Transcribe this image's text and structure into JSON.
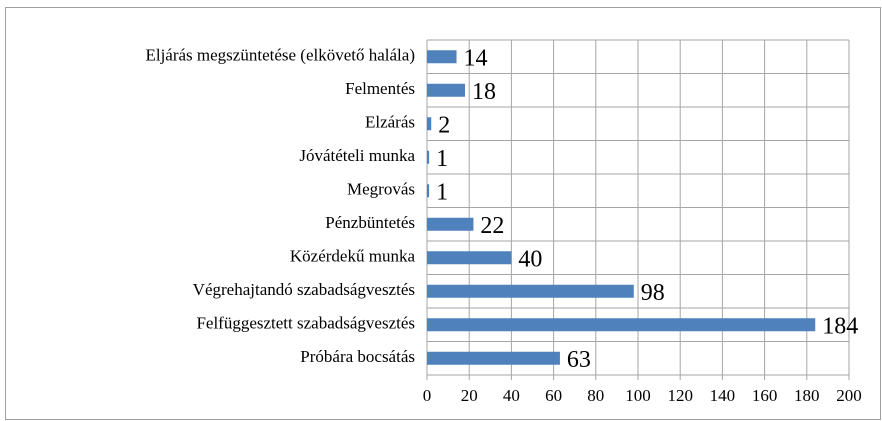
{
  "chart_data": {
    "type": "bar",
    "orientation": "horizontal",
    "categories": [
      "Eljárás megszüntetése (elkövető halála)",
      "Felmentés",
      "Elzárás",
      "Jóvátételi munka",
      "Megrovás",
      "Pénzbüntetés",
      "Közérdekű munka",
      "Végrehajtandó szabadságvesztés",
      "Felfüggesztett szabadságvesztés",
      "Próbára bocsátás"
    ],
    "values": [
      14,
      18,
      2,
      1,
      1,
      22,
      40,
      98,
      184,
      63
    ],
    "color": "#4f81bd",
    "xlim": [
      0,
      200
    ],
    "xticks": [
      0,
      20,
      40,
      60,
      80,
      100,
      120,
      140,
      160,
      180,
      200
    ],
    "grid": true
  }
}
